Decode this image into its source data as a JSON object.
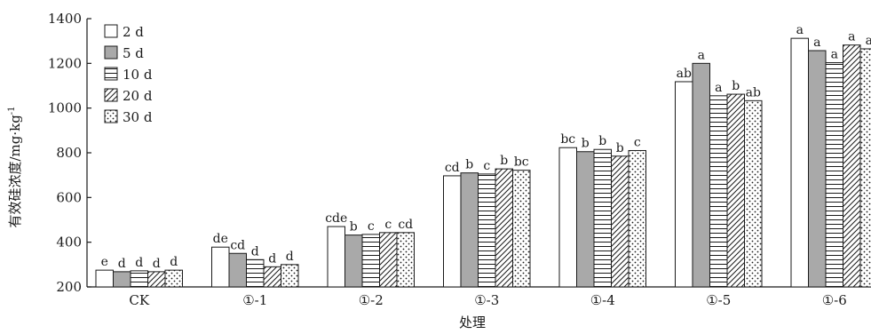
{
  "chart_data": {
    "type": "bar",
    "title": "",
    "xlabel": "处理",
    "ylabel": "有效硅浓度/mg·kg",
    "ylabel_superscript": "-1",
    "ylim": [
      200,
      1400
    ],
    "yticks": [
      200,
      400,
      600,
      800,
      1000,
      1200,
      1400
    ],
    "categories": [
      "CK",
      "①-1",
      "①-2",
      "①-3",
      "①-4",
      "①-5",
      "①-6"
    ],
    "legend_position": "top-left",
    "series": [
      {
        "name": "2 d",
        "pattern": "white",
        "values": [
          275,
          378,
          470,
          697,
          823,
          1118,
          1312
        ],
        "letters": [
          "e",
          "de",
          "cde",
          "cd",
          "bc",
          "ab",
          "a"
        ]
      },
      {
        "name": "5 d",
        "pattern": "gray",
        "values": [
          268,
          350,
          432,
          710,
          805,
          1200,
          1257
        ],
        "letters": [
          "d",
          "cd",
          "b",
          "b",
          "b",
          "a",
          "a"
        ]
      },
      {
        "name": "10 d",
        "pattern": "hlines",
        "values": [
          272,
          322,
          435,
          705,
          815,
          1055,
          1203
        ],
        "letters": [
          "d",
          "d",
          "c",
          "c",
          "b",
          "a",
          "a"
        ]
      },
      {
        "name": "20 d",
        "pattern": "diagonal",
        "values": [
          268,
          290,
          443,
          728,
          785,
          1062,
          1282
        ],
        "letters": [
          "d",
          "d",
          "c",
          "b",
          "b",
          "b",
          "a"
        ]
      },
      {
        "name": "30 d",
        "pattern": "dots",
        "values": [
          275,
          300,
          443,
          722,
          810,
          1033,
          1265
        ],
        "letters": [
          "d",
          "d",
          "cd",
          "bc",
          "c",
          "ab",
          "a"
        ]
      }
    ]
  },
  "colors": {
    "gray_fill": "#a9a9a9",
    "ink": "#1a1a1a"
  }
}
